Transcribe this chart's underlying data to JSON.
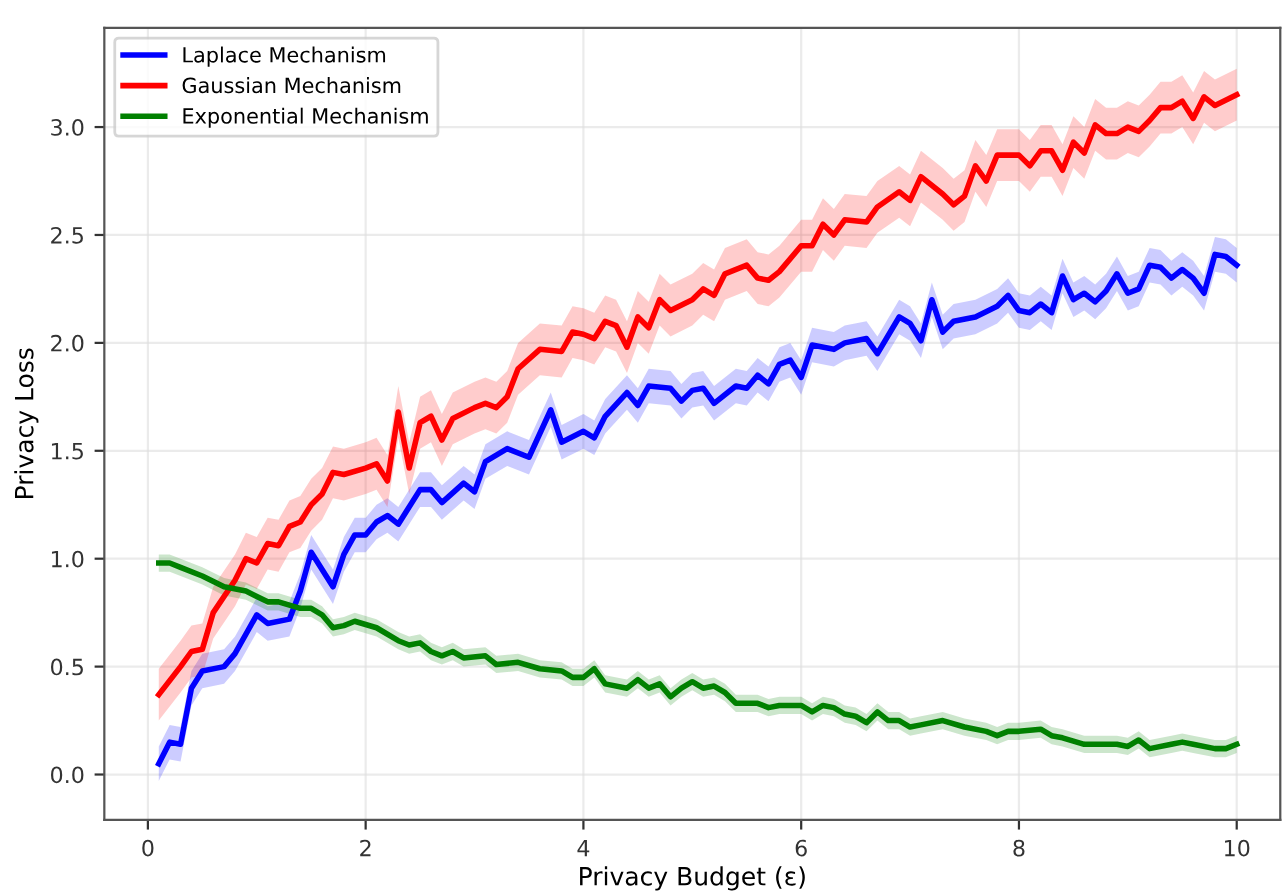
{
  "chart_data": {
    "type": "line",
    "xlabel": "Privacy Budget (ε)",
    "ylabel": "Privacy Loss",
    "xlim": [
      -0.4,
      10.4
    ],
    "ylim": [
      -0.21,
      3.46
    ],
    "xticks": [
      0,
      2,
      4,
      6,
      8,
      10
    ],
    "yticks": [
      {
        "value": 0,
        "label": "0.0"
      },
      0.5,
      {
        "value": 1,
        "label": "1.0"
      },
      1.5,
      {
        "value": 2,
        "label": "2.0"
      },
      2.5,
      {
        "value": 3,
        "label": "3.0"
      }
    ],
    "grid": true,
    "legend": "top left",
    "marker": "none",
    "line_style": "solid",
    "series": [
      {
        "name": "Laplace Mechanism",
        "color": "#0000ff",
        "x": [
          0.1,
          0.2,
          0.3,
          0.4,
          0.5,
          0.7,
          0.8,
          1.0,
          1.1,
          1.3,
          1.4,
          1.5,
          1.7,
          1.8,
          1.9,
          2.0,
          2.1,
          2.2,
          2.3,
          2.5,
          2.6,
          2.7,
          2.9,
          3.0,
          3.1,
          3.3,
          3.5,
          3.7,
          3.8,
          4.0,
          4.1,
          4.2,
          4.4,
          4.5,
          4.6,
          4.8,
          4.9,
          5.0,
          5.1,
          5.2,
          5.4,
          5.5,
          5.6,
          5.7,
          5.8,
          5.9,
          6.0,
          6.1,
          6.3,
          6.4,
          6.6,
          6.7,
          6.9,
          7.0,
          7.1,
          7.2,
          7.3,
          7.4,
          7.6,
          7.8,
          7.9,
          8.0,
          8.1,
          8.2,
          8.3,
          8.4,
          8.5,
          8.6,
          8.7,
          8.8,
          8.9,
          9.0,
          9.1,
          9.2,
          9.3,
          9.4,
          9.5,
          9.6,
          9.7,
          9.8,
          9.9,
          10.0
        ],
        "values": [
          0.05,
          0.15,
          0.14,
          0.4,
          0.48,
          0.5,
          0.56,
          0.74,
          0.7,
          0.72,
          0.85,
          1.03,
          0.87,
          1.02,
          1.11,
          1.11,
          1.17,
          1.2,
          1.16,
          1.32,
          1.32,
          1.26,
          1.35,
          1.31,
          1.45,
          1.51,
          1.47,
          1.69,
          1.54,
          1.59,
          1.56,
          1.66,
          1.77,
          1.71,
          1.8,
          1.79,
          1.73,
          1.78,
          1.79,
          1.72,
          1.8,
          1.79,
          1.85,
          1.81,
          1.9,
          1.92,
          1.84,
          1.99,
          1.97,
          2.0,
          2.02,
          1.95,
          2.12,
          2.09,
          2.01,
          2.2,
          2.05,
          2.1,
          2.12,
          2.17,
          2.22,
          2.15,
          2.14,
          2.18,
          2.14,
          2.31,
          2.2,
          2.23,
          2.19,
          2.24,
          2.32,
          2.23,
          2.25,
          2.36,
          2.35,
          2.3,
          2.34,
          2.3,
          2.23,
          2.41,
          2.4,
          2.36
        ],
        "lower": [
          -0.03,
          0.07,
          0.06,
          0.32,
          0.4,
          0.42,
          0.48,
          0.66,
          0.62,
          0.64,
          0.77,
          0.95,
          0.79,
          0.94,
          1.03,
          1.03,
          1.09,
          1.12,
          1.08,
          1.24,
          1.24,
          1.18,
          1.27,
          1.23,
          1.37,
          1.43,
          1.39,
          1.61,
          1.46,
          1.51,
          1.48,
          1.58,
          1.69,
          1.63,
          1.72,
          1.71,
          1.65,
          1.7,
          1.71,
          1.64,
          1.72,
          1.71,
          1.77,
          1.73,
          1.82,
          1.84,
          1.76,
          1.91,
          1.89,
          1.92,
          1.94,
          1.87,
          2.04,
          2.01,
          1.93,
          2.12,
          1.97,
          2.02,
          2.04,
          2.09,
          2.14,
          2.07,
          2.06,
          2.1,
          2.06,
          2.23,
          2.12,
          2.15,
          2.11,
          2.16,
          2.24,
          2.15,
          2.17,
          2.28,
          2.27,
          2.22,
          2.26,
          2.22,
          2.15,
          2.33,
          2.32,
          2.28
        ],
        "upper": [
          0.13,
          0.23,
          0.22,
          0.48,
          0.56,
          0.58,
          0.64,
          0.82,
          0.78,
          0.8,
          0.93,
          1.11,
          0.95,
          1.1,
          1.19,
          1.19,
          1.25,
          1.28,
          1.24,
          1.4,
          1.4,
          1.34,
          1.43,
          1.39,
          1.53,
          1.59,
          1.55,
          1.77,
          1.62,
          1.67,
          1.64,
          1.74,
          1.85,
          1.79,
          1.88,
          1.87,
          1.81,
          1.86,
          1.87,
          1.8,
          1.88,
          1.87,
          1.93,
          1.89,
          1.98,
          2.0,
          1.92,
          2.07,
          2.05,
          2.08,
          2.1,
          2.03,
          2.2,
          2.17,
          2.09,
          2.28,
          2.13,
          2.18,
          2.2,
          2.25,
          2.3,
          2.23,
          2.22,
          2.26,
          2.22,
          2.39,
          2.28,
          2.31,
          2.27,
          2.32,
          2.4,
          2.31,
          2.33,
          2.44,
          2.43,
          2.38,
          2.42,
          2.38,
          2.31,
          2.49,
          2.48,
          2.44
        ]
      },
      {
        "name": "Gaussian Mechanism",
        "color": "#ff0000",
        "x": [
          0.1,
          0.3,
          0.4,
          0.5,
          0.6,
          0.8,
          0.9,
          1.0,
          1.1,
          1.2,
          1.3,
          1.4,
          1.5,
          1.6,
          1.7,
          1.8,
          2.0,
          2.1,
          2.2,
          2.3,
          2.4,
          2.5,
          2.6,
          2.7,
          2.8,
          3.0,
          3.1,
          3.2,
          3.3,
          3.4,
          3.6,
          3.8,
          3.9,
          4.0,
          4.1,
          4.2,
          4.3,
          4.4,
          4.5,
          4.6,
          4.7,
          4.8,
          5.0,
          5.1,
          5.2,
          5.3,
          5.5,
          5.6,
          5.7,
          5.8,
          6.0,
          6.1,
          6.2,
          6.3,
          6.4,
          6.6,
          6.7,
          6.9,
          7.0,
          7.1,
          7.3,
          7.4,
          7.5,
          7.6,
          7.7,
          7.8,
          8.0,
          8.1,
          8.2,
          8.3,
          8.4,
          8.5,
          8.6,
          8.7,
          8.8,
          8.9,
          9.0,
          9.1,
          9.2,
          9.3,
          9.4,
          9.5,
          9.6,
          9.7,
          9.8,
          10.0
        ],
        "values": [
          0.37,
          0.5,
          0.57,
          0.58,
          0.75,
          0.9,
          1.0,
          0.98,
          1.07,
          1.06,
          1.15,
          1.17,
          1.25,
          1.3,
          1.4,
          1.39,
          1.42,
          1.44,
          1.36,
          1.68,
          1.42,
          1.63,
          1.66,
          1.55,
          1.65,
          1.7,
          1.72,
          1.7,
          1.75,
          1.88,
          1.97,
          1.96,
          2.05,
          2.04,
          2.02,
          2.1,
          2.08,
          1.98,
          2.12,
          2.07,
          2.2,
          2.15,
          2.2,
          2.25,
          2.22,
          2.32,
          2.36,
          2.3,
          2.29,
          2.33,
          2.45,
          2.45,
          2.55,
          2.5,
          2.57,
          2.56,
          2.63,
          2.7,
          2.66,
          2.77,
          2.69,
          2.64,
          2.68,
          2.82,
          2.75,
          2.87,
          2.87,
          2.82,
          2.89,
          2.89,
          2.8,
          2.93,
          2.88,
          3.01,
          2.97,
          2.97,
          3.0,
          2.98,
          3.03,
          3.09,
          3.09,
          3.12,
          3.04,
          3.14,
          3.1,
          3.15
        ],
        "lower": [
          0.25,
          0.38,
          0.45,
          0.46,
          0.63,
          0.78,
          0.88,
          0.86,
          0.95,
          0.94,
          1.03,
          1.05,
          1.13,
          1.18,
          1.28,
          1.27,
          1.3,
          1.32,
          1.24,
          1.56,
          1.3,
          1.51,
          1.54,
          1.43,
          1.53,
          1.58,
          1.6,
          1.58,
          1.63,
          1.76,
          1.85,
          1.84,
          1.93,
          1.92,
          1.9,
          1.98,
          1.96,
          1.86,
          2.0,
          1.95,
          2.08,
          2.03,
          2.08,
          2.13,
          2.1,
          2.2,
          2.24,
          2.18,
          2.17,
          2.21,
          2.33,
          2.33,
          2.43,
          2.38,
          2.45,
          2.44,
          2.51,
          2.58,
          2.54,
          2.65,
          2.57,
          2.52,
          2.56,
          2.7,
          2.63,
          2.75,
          2.75,
          2.7,
          2.77,
          2.77,
          2.68,
          2.81,
          2.76,
          2.89,
          2.85,
          2.85,
          2.88,
          2.86,
          2.91,
          2.97,
          2.97,
          3.0,
          2.92,
          3.02,
          2.98,
          3.03
        ],
        "upper": [
          0.49,
          0.62,
          0.69,
          0.7,
          0.87,
          1.02,
          1.12,
          1.1,
          1.19,
          1.18,
          1.27,
          1.29,
          1.37,
          1.42,
          1.52,
          1.51,
          1.54,
          1.56,
          1.48,
          1.8,
          1.54,
          1.75,
          1.78,
          1.67,
          1.77,
          1.82,
          1.84,
          1.82,
          1.87,
          2.0,
          2.09,
          2.08,
          2.17,
          2.16,
          2.14,
          2.22,
          2.2,
          2.1,
          2.24,
          2.19,
          2.32,
          2.27,
          2.32,
          2.37,
          2.34,
          2.44,
          2.48,
          2.42,
          2.41,
          2.45,
          2.57,
          2.57,
          2.67,
          2.62,
          2.69,
          2.68,
          2.75,
          2.82,
          2.78,
          2.89,
          2.81,
          2.76,
          2.8,
          2.94,
          2.87,
          2.99,
          2.99,
          2.94,
          3.01,
          3.01,
          2.92,
          3.05,
          3.0,
          3.13,
          3.09,
          3.09,
          3.12,
          3.1,
          3.15,
          3.21,
          3.21,
          3.24,
          3.16,
          3.26,
          3.22,
          3.27
        ]
      },
      {
        "name": "Exponential Mechanism",
        "color": "#008000",
        "x": [
          0.1,
          0.2,
          0.3,
          0.5,
          0.7,
          0.9,
          1.1,
          1.2,
          1.4,
          1.5,
          1.6,
          1.7,
          1.8,
          1.9,
          2.1,
          2.3,
          2.4,
          2.5,
          2.6,
          2.7,
          2.8,
          2.9,
          3.1,
          3.2,
          3.4,
          3.6,
          3.8,
          3.9,
          4.0,
          4.1,
          4.2,
          4.4,
          4.5,
          4.6,
          4.7,
          4.8,
          4.9,
          5.0,
          5.1,
          5.2,
          5.3,
          5.4,
          5.6,
          5.7,
          5.8,
          5.9,
          6.0,
          6.1,
          6.2,
          6.3,
          6.4,
          6.5,
          6.6,
          6.7,
          6.8,
          6.9,
          7.0,
          7.1,
          7.3,
          7.5,
          7.7,
          7.8,
          7.9,
          8.0,
          8.2,
          8.3,
          8.4,
          8.6,
          8.7,
          8.9,
          9.0,
          9.1,
          9.2,
          9.4,
          9.5,
          9.6,
          9.8,
          9.9,
          10.0
        ],
        "values": [
          0.98,
          0.98,
          0.96,
          0.92,
          0.87,
          0.85,
          0.8,
          0.8,
          0.77,
          0.77,
          0.74,
          0.68,
          0.69,
          0.71,
          0.68,
          0.62,
          0.6,
          0.61,
          0.57,
          0.55,
          0.57,
          0.54,
          0.55,
          0.51,
          0.52,
          0.49,
          0.48,
          0.45,
          0.45,
          0.49,
          0.42,
          0.4,
          0.44,
          0.4,
          0.42,
          0.36,
          0.4,
          0.43,
          0.4,
          0.41,
          0.38,
          0.33,
          0.33,
          0.31,
          0.32,
          0.32,
          0.32,
          0.29,
          0.32,
          0.31,
          0.28,
          0.27,
          0.24,
          0.29,
          0.25,
          0.25,
          0.22,
          0.23,
          0.25,
          0.22,
          0.2,
          0.18,
          0.2,
          0.2,
          0.21,
          0.18,
          0.17,
          0.14,
          0.14,
          0.14,
          0.13,
          0.16,
          0.12,
          0.14,
          0.15,
          0.14,
          0.12,
          0.12,
          0.14
        ],
        "lower": [
          0.94,
          0.94,
          0.92,
          0.88,
          0.83,
          0.81,
          0.76,
          0.76,
          0.73,
          0.73,
          0.7,
          0.64,
          0.65,
          0.67,
          0.64,
          0.58,
          0.56,
          0.57,
          0.53,
          0.51,
          0.53,
          0.5,
          0.51,
          0.47,
          0.48,
          0.45,
          0.44,
          0.41,
          0.41,
          0.45,
          0.38,
          0.36,
          0.4,
          0.36,
          0.38,
          0.32,
          0.36,
          0.39,
          0.36,
          0.37,
          0.34,
          0.29,
          0.29,
          0.27,
          0.28,
          0.28,
          0.28,
          0.25,
          0.28,
          0.27,
          0.24,
          0.23,
          0.2,
          0.25,
          0.21,
          0.21,
          0.18,
          0.19,
          0.21,
          0.18,
          0.16,
          0.14,
          0.16,
          0.16,
          0.17,
          0.14,
          0.13,
          0.1,
          0.1,
          0.1,
          0.09,
          0.12,
          0.08,
          0.1,
          0.11,
          0.1,
          0.08,
          0.08,
          0.1
        ],
        "upper": [
          1.02,
          1.02,
          1.0,
          0.96,
          0.91,
          0.89,
          0.84,
          0.84,
          0.81,
          0.81,
          0.78,
          0.72,
          0.73,
          0.75,
          0.72,
          0.66,
          0.64,
          0.65,
          0.61,
          0.59,
          0.61,
          0.58,
          0.59,
          0.55,
          0.56,
          0.53,
          0.52,
          0.49,
          0.49,
          0.53,
          0.46,
          0.44,
          0.48,
          0.44,
          0.46,
          0.4,
          0.44,
          0.47,
          0.44,
          0.45,
          0.42,
          0.37,
          0.37,
          0.35,
          0.36,
          0.36,
          0.36,
          0.33,
          0.36,
          0.35,
          0.32,
          0.31,
          0.28,
          0.33,
          0.29,
          0.29,
          0.26,
          0.27,
          0.29,
          0.26,
          0.24,
          0.22,
          0.24,
          0.24,
          0.25,
          0.22,
          0.21,
          0.18,
          0.18,
          0.18,
          0.17,
          0.2,
          0.16,
          0.18,
          0.19,
          0.18,
          0.16,
          0.16,
          0.18
        ]
      }
    ]
  }
}
